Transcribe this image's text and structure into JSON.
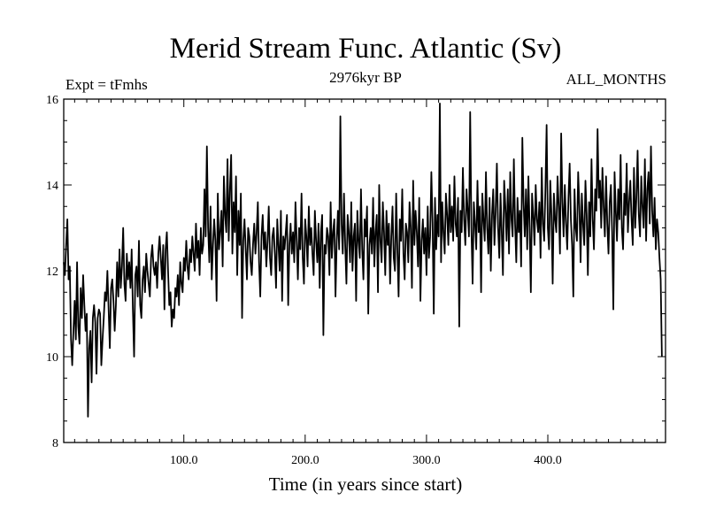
{
  "chart_data": {
    "type": "line",
    "title": "Merid Stream Func. Atlantic (Sv)",
    "subtitle_left": "Expt = tFmhs",
    "subtitle_center": "2976kyr BP",
    "subtitle_right": "ALL_MONTHS",
    "xlabel": "Time (in years since start)",
    "ylabel": "",
    "xlim": [
      1,
      497
    ],
    "ylim": [
      8,
      16
    ],
    "xticks": [
      100,
      200,
      300,
      400
    ],
    "xtick_labels": [
      "100.0",
      "200.0",
      "300.0",
      "400.0"
    ],
    "yticks": [
      8,
      10,
      12,
      14,
      16
    ],
    "ytick_labels": [
      "8",
      "10",
      "12",
      "14",
      "16"
    ],
    "grid": false,
    "series": [
      {
        "name": "Merid Stream Func. Atlantic",
        "color": "#000000",
        "x_start": 1,
        "x_step": 1,
        "values": [
          12.2,
          11.9,
          12.6,
          13.2,
          11.8,
          12.1,
          10.4,
          9.8,
          10.6,
          11.3,
          10.4,
          12.2,
          10.7,
          10.3,
          11.6,
          10.9,
          11.9,
          11.2,
          10.6,
          11.0,
          8.6,
          10.2,
          10.6,
          9.4,
          10.9,
          11.2,
          10.8,
          9.6,
          10.9,
          11.1,
          11.0,
          9.8,
          10.4,
          10.9,
          11.5,
          11.3,
          12.0,
          11.1,
          10.2,
          11.6,
          11.8,
          11.3,
          10.6,
          11.2,
          12.2,
          11.4,
          12.5,
          11.6,
          12.1,
          13.0,
          11.7,
          11.3,
          12.4,
          11.8,
          12.2,
          11.6,
          12.5,
          11.1,
          10.0,
          11.9,
          12.1,
          11.4,
          12.7,
          11.2,
          10.9,
          11.8,
          12.1,
          11.5,
          12.4,
          12.0,
          11.7,
          11.4,
          12.3,
          12.6,
          12.1,
          11.9,
          12.2,
          11.6,
          12.4,
          12.8,
          12.3,
          11.8,
          12.6,
          11.1,
          12.5,
          12.9,
          12.0,
          11.2,
          11.5,
          10.7,
          11.1,
          10.9,
          11.6,
          11.4,
          11.9,
          11.2,
          12.2,
          11.7,
          11.5,
          12.3,
          12.0,
          12.7,
          12.1,
          11.8,
          12.5,
          12.2,
          12.8,
          12.4,
          12.0,
          13.1,
          12.3,
          12.7,
          11.9,
          13.0,
          12.4,
          12.6,
          13.9,
          12.8,
          14.9,
          13.0,
          12.2,
          13.5,
          11.8,
          12.6,
          13.2,
          12.7,
          11.3,
          13.8,
          12.5,
          12.9,
          13.4,
          12.1,
          14.2,
          13.3,
          12.9,
          14.6,
          12.7,
          13.9,
          14.7,
          12.4,
          13.6,
          12.9,
          14.2,
          11.9,
          13.4,
          12.6,
          13.8,
          10.9,
          12.7,
          13.2,
          12.5,
          11.8,
          13.0,
          12.8,
          12.2,
          11.9,
          12.6,
          13.1,
          12.4,
          12.9,
          13.6,
          12.2,
          11.4,
          12.8,
          13.3,
          12.5,
          12.9,
          12.1,
          12.7,
          13.5,
          12.3,
          11.9,
          12.8,
          13.0,
          12.4,
          11.6,
          13.2,
          12.6,
          12.0,
          13.4,
          11.3,
          12.8,
          12.5,
          12.9,
          13.3,
          11.2,
          12.6,
          13.1,
          12.4,
          12.9,
          12.2,
          13.6,
          12.7,
          11.8,
          13.0,
          12.5,
          13.8,
          12.3,
          11.7,
          13.2,
          12.8,
          12.1,
          13.5,
          12.6,
          13.0,
          12.4,
          11.9,
          13.4,
          12.7,
          12.2,
          13.1,
          11.6,
          12.9,
          13.3,
          10.5,
          12.6,
          12.4,
          13.0,
          12.8,
          11.9,
          13.6,
          12.3,
          12.9,
          13.2,
          11.4,
          12.7,
          13.4,
          12.5,
          15.6,
          13.1,
          12.4,
          13.8,
          12.6,
          11.7,
          13.3,
          12.9,
          12.2,
          13.6,
          12.0,
          12.8,
          13.1,
          11.3,
          13.4,
          12.7,
          12.3,
          13.9,
          12.5,
          11.8,
          13.2,
          12.8,
          13.5,
          11.0,
          12.6,
          13.0,
          12.4,
          13.7,
          12.1,
          12.9,
          13.3,
          11.5,
          14.0,
          12.7,
          12.2,
          13.6,
          12.9,
          11.9,
          13.4,
          12.6,
          13.1,
          11.7,
          12.8,
          13.5,
          12.3,
          12.0,
          13.8,
          12.5,
          11.4,
          13.2,
          12.7,
          13.9,
          12.4,
          11.8,
          13.1,
          12.9,
          12.2,
          13.6,
          13.0,
          11.6,
          14.1,
          12.6,
          13.4,
          12.9,
          12.1,
          13.7,
          11.3,
          12.7,
          13.2,
          12.4,
          13.0,
          11.9,
          13.5,
          12.3,
          12.8,
          14.3,
          13.1,
          11.0,
          13.7,
          12.5,
          13.3,
          12.8,
          15.9,
          12.2,
          13.6,
          12.9,
          12.4,
          13.8,
          13.3,
          12.6,
          14.0,
          12.9,
          13.5,
          12.7,
          14.2,
          13.1,
          12.8,
          13.7,
          10.7,
          13.4,
          12.9,
          14.4,
          13.2,
          12.6,
          13.9,
          13.4,
          12.8,
          15.7,
          13.0,
          11.7,
          13.6,
          13.1,
          12.5,
          14.1,
          12.9,
          13.5,
          11.5,
          13.8,
          13.2,
          12.7,
          14.3,
          13.0,
          12.4,
          13.7,
          12.0,
          13.3,
          13.9,
          12.6,
          13.4,
          14.5,
          13.0,
          12.3,
          13.8,
          12.9,
          11.9,
          14.1,
          13.5,
          12.7,
          13.9,
          12.4,
          14.3,
          13.2,
          12.8,
          14.6,
          13.1,
          12.2,
          13.7,
          12.9,
          13.4,
          12.1,
          15.1,
          13.6,
          12.8,
          13.9,
          12.5,
          14.2,
          13.0,
          11.5,
          13.8,
          13.3,
          12.6,
          14.0,
          13.2,
          12.9,
          13.6,
          12.3,
          14.4,
          13.1,
          12.7,
          13.9,
          15.4,
          13.0,
          12.5,
          14.1,
          13.3,
          11.7,
          13.8,
          13.2,
          12.9,
          14.2,
          13.5,
          12.4,
          15.2,
          13.6,
          12.8,
          14.0,
          13.1,
          12.5,
          13.7,
          14.5,
          13.2,
          12.6,
          11.4,
          13.9,
          13.0,
          12.7,
          14.3,
          13.5,
          12.2,
          13.8,
          13.1,
          12.6,
          14.1,
          13.3,
          11.9,
          13.6,
          12.8,
          14.6,
          13.2,
          12.5,
          13.9,
          13.4,
          15.3,
          13.7,
          14.1,
          13.0,
          14.4,
          13.5,
          12.8,
          14.2,
          13.1,
          12.4,
          13.6,
          14.0,
          12.9,
          11.1,
          14.3,
          13.4,
          12.7,
          13.9,
          13.2,
          14.7,
          13.0,
          12.5,
          13.8,
          13.3,
          14.5,
          12.9,
          13.6,
          14.1,
          13.2,
          12.6,
          14.4,
          13.0,
          13.7,
          14.8,
          13.3,
          12.8,
          14.2,
          13.5,
          13.0,
          14.6,
          12.7,
          13.9,
          14.3,
          13.1,
          14.9,
          13.4,
          12.8,
          13.7,
          12.5,
          13.2,
          12.9,
          12.3,
          11.8,
          10.0
        ]
      }
    ]
  }
}
